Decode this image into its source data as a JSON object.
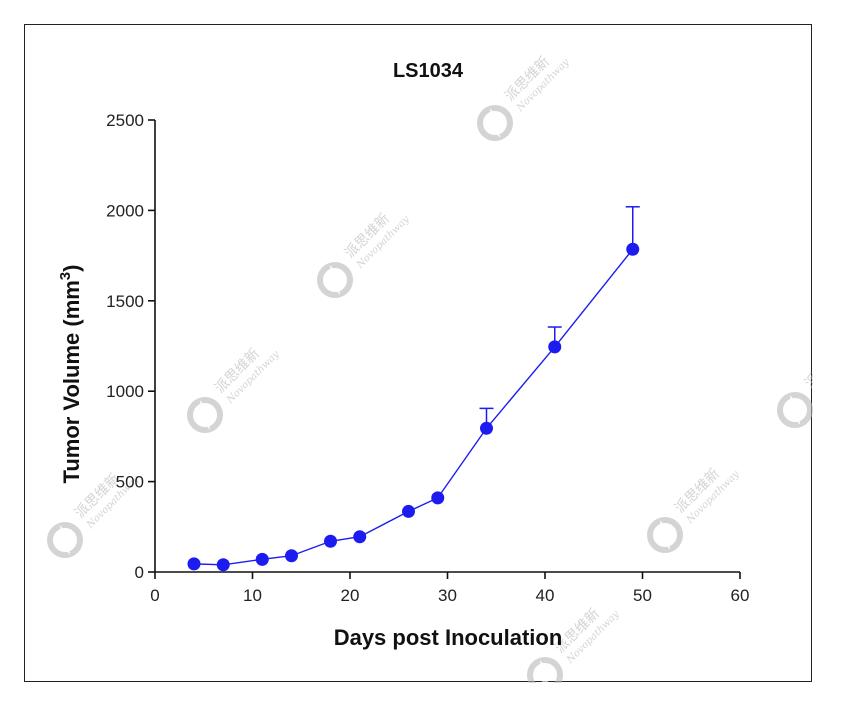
{
  "chart_data": {
    "type": "line",
    "title": "LS1034",
    "xlabel": "Days post Inoculation",
    "ylabel_main": "Tumor Volume (mm",
    "ylabel_sup": "3",
    "ylabel_close": ")",
    "xlim": [
      0,
      60
    ],
    "ylim": [
      0,
      2500
    ],
    "x_ticks": [
      0,
      10,
      20,
      30,
      40,
      50,
      60
    ],
    "y_ticks": [
      0,
      500,
      1000,
      1500,
      2000,
      2500
    ],
    "grid": false,
    "series": [
      {
        "x": [
          4,
          7,
          11,
          14,
          18,
          21,
          26,
          29,
          34,
          41,
          49
        ],
        "y": [
          45,
          40,
          70,
          90,
          170,
          195,
          335,
          410,
          795,
          1245,
          1785
        ],
        "error_upper": [
          0,
          0,
          0,
          0,
          0,
          0,
          0,
          0,
          905,
          1355,
          2020
        ],
        "color": "#1c1cf0"
      }
    ]
  },
  "watermark": {
    "chinese": "派思维新",
    "latin": "Novopathway",
    "color": "#b8b8b8",
    "icon": "novopathway-logo-icon"
  }
}
